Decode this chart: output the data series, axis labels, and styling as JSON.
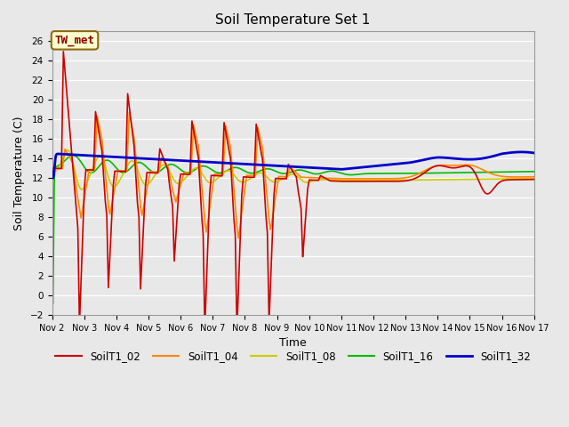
{
  "title": "Soil Temperature Set 1",
  "xlabel": "Time",
  "ylabel": "Soil Temperature (C)",
  "ylim": [
    -2,
    27
  ],
  "yticks": [
    -2,
    0,
    2,
    4,
    6,
    8,
    10,
    12,
    14,
    16,
    18,
    20,
    22,
    24,
    26
  ],
  "xlim": [
    2,
    17
  ],
  "xtick_positions": [
    2,
    3,
    4,
    5,
    6,
    7,
    8,
    9,
    10,
    11,
    12,
    13,
    14,
    15,
    16,
    17
  ],
  "xtick_labels": [
    "Nov 2",
    "Nov 3",
    "Nov 4",
    "Nov 5",
    "Nov 6",
    "Nov 7",
    "Nov 8",
    "Nov 9",
    "Nov 10",
    "Nov 11",
    "Nov 12",
    "Nov 13",
    "Nov 14",
    "Nov 15",
    "Nov 16",
    "Nov 17"
  ],
  "colors": {
    "SoilT1_02": "#cc0000",
    "SoilT1_04": "#ff8800",
    "SoilT1_08": "#cccc00",
    "SoilT1_16": "#00bb00",
    "SoilT1_32": "#0000cc"
  },
  "annotation_text": "TW_met",
  "annotation_color": "#8b0000",
  "annotation_bg": "#ffffcc",
  "annotation_border": "#8b6914",
  "bg_color": "#e8e8e8",
  "grid_color": "#ffffff",
  "figsize": [
    6.4,
    4.8
  ],
  "dpi": 100
}
